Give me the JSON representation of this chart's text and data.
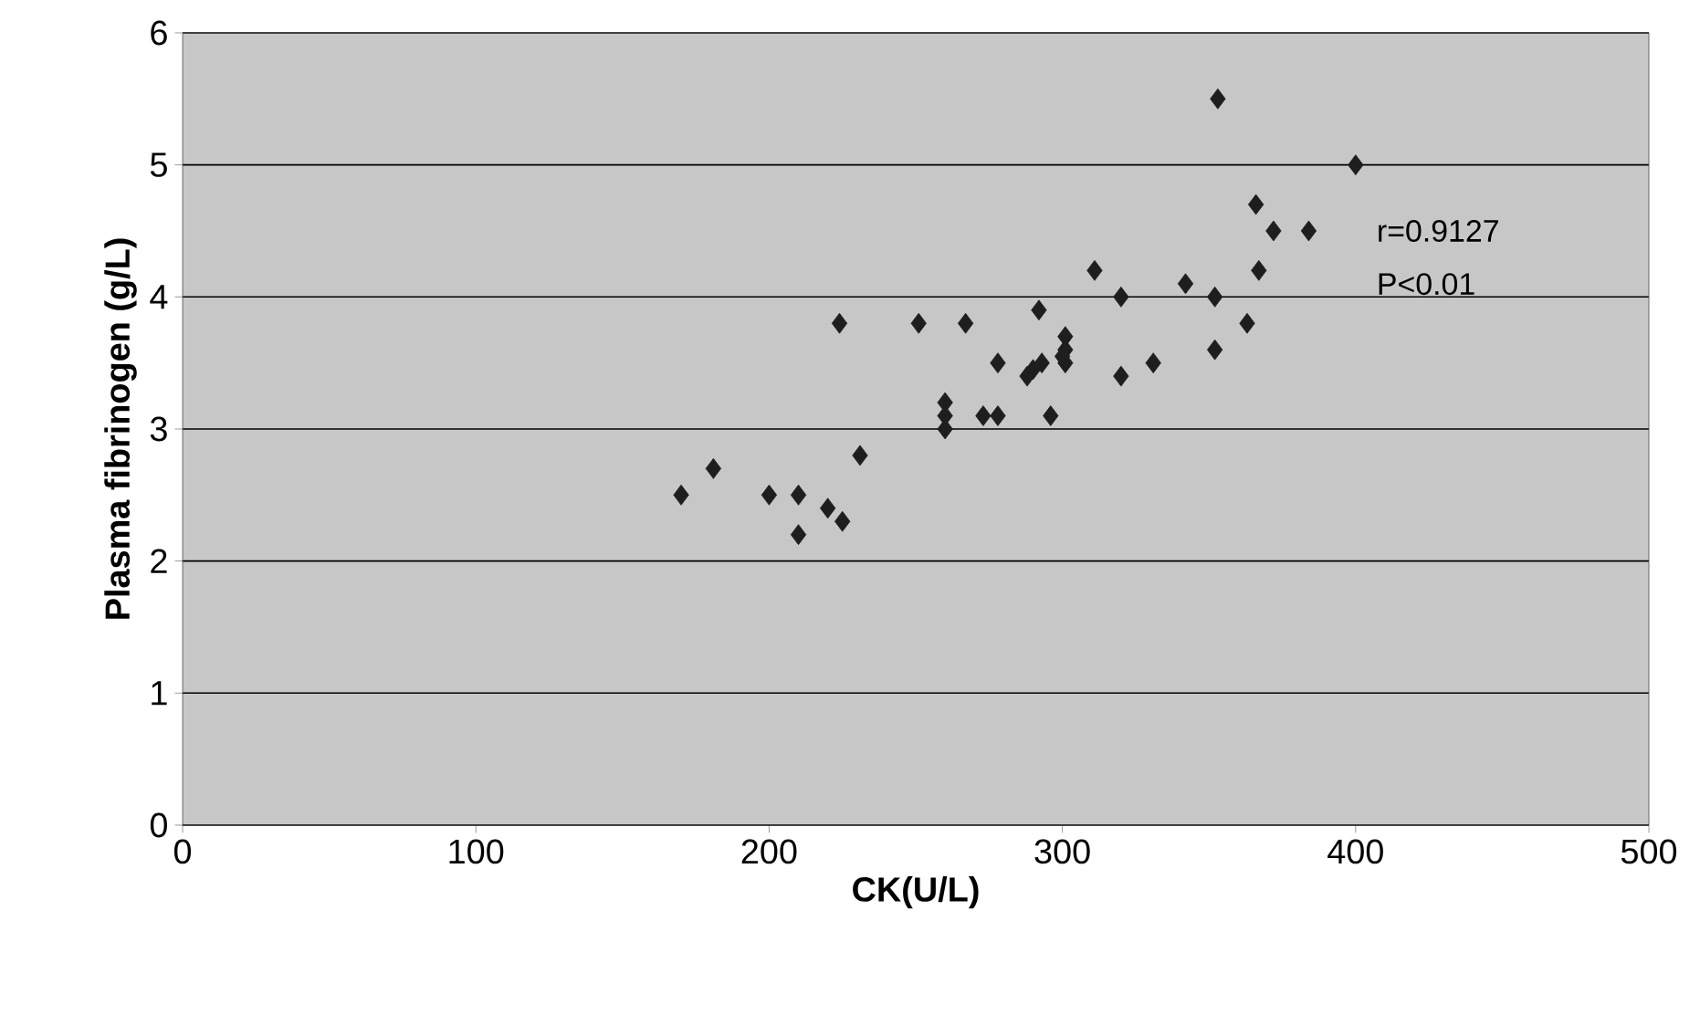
{
  "chart_data": {
    "type": "scatter",
    "xlabel": "CK(U/L)",
    "ylabel": "Plasma  fibrinogen (g/L)",
    "x": [
      170,
      181,
      200,
      210,
      210,
      220,
      225,
      231,
      224,
      251,
      260,
      260,
      260,
      267,
      273,
      278,
      278,
      292,
      290,
      288,
      293,
      296,
      301,
      301,
      301,
      300,
      311,
      320,
      320,
      331,
      342,
      352,
      352,
      353,
      363,
      367,
      366,
      372,
      384,
      400
    ],
    "values": [
      2.5,
      2.7,
      2.5,
      2.5,
      2.2,
      2.4,
      2.3,
      2.8,
      3.8,
      3.8,
      3.2,
      3.1,
      3.0,
      3.8,
      3.1,
      3.5,
      3.1,
      3.9,
      3.45,
      3.4,
      3.5,
      3.1,
      3.7,
      3.6,
      3.5,
      3.55,
      4.2,
      4.0,
      3.4,
      3.5,
      4.1,
      4.0,
      3.6,
      5.5,
      3.8,
      4.2,
      4.7,
      4.5,
      4.5,
      5.0
    ],
    "color": "#1e1e1e",
    "marker": "diamond",
    "grid": "y",
    "xlim": [
      0,
      500
    ],
    "ylim": [
      0,
      6
    ],
    "xticks": [
      0,
      100,
      200,
      300,
      400,
      500
    ],
    "yticks": [
      0,
      1,
      2,
      3,
      4,
      5,
      6
    ],
    "annotations": [
      "r=0.9127",
      "P<0.01"
    ]
  }
}
